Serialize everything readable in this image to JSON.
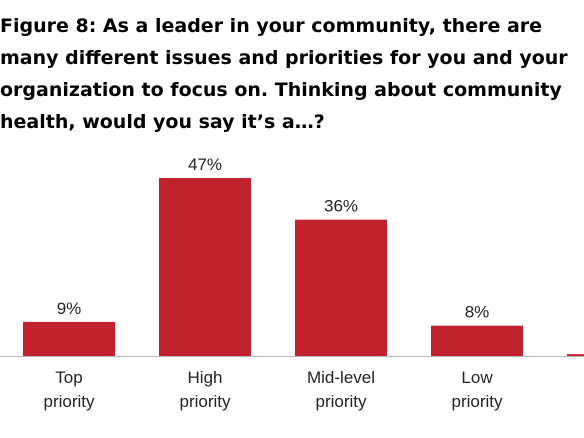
{
  "title_lines": [
    "Figure 8:  As a leader in your community, there are",
    "many different issues and priorities for you and your",
    "organization to focus on. Thinking about community",
    "health, would you say it’s a…?"
  ],
  "colors": {
    "bar": "#c1232e",
    "axis": "#b8b8b8"
  },
  "chart_data": {
    "type": "bar",
    "categories": [
      [
        "Top",
        "priority"
      ],
      [
        "High",
        "priority"
      ],
      [
        "Mid-level",
        "priority"
      ],
      [
        "Low",
        "priority"
      ],
      [
        "",
        ""
      ]
    ],
    "values": [
      9,
      47,
      36,
      8,
      0.5
    ],
    "value_labels": [
      "9%",
      "47%",
      "36%",
      "8%",
      ""
    ],
    "title": "Figure 8:  As a leader in your community, there are many different issues and priorities for you and your organization to focus on. Thinking about community health, would you say it’s a…?",
    "xlabel": "",
    "ylabel": "",
    "ylim": [
      0,
      47
    ],
    "grid": false,
    "legend": "none"
  }
}
